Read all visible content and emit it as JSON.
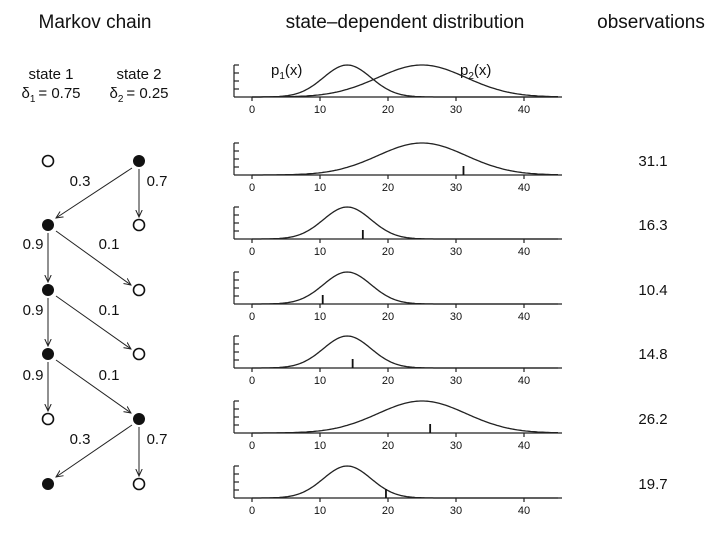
{
  "headers": {
    "markov": "Markov chain",
    "distribution": "state–dependent distribution",
    "observations": "observations"
  },
  "states": [
    {
      "label": "state 1",
      "delta_symbol": "δ",
      "delta_sub": "1",
      "delta_value": "= 0.75"
    },
    {
      "label": "state 2",
      "delta_symbol": "δ",
      "delta_sub": "2",
      "delta_value": "= 0.25"
    }
  ],
  "top_plot_labels": [
    {
      "p": "p",
      "sub": "1",
      "x": "(x)"
    },
    {
      "p": "p",
      "sub": "2",
      "x": "(x)"
    }
  ],
  "distributions": {
    "p1": {
      "mean": 14,
      "sd": 3.5
    },
    "p2": {
      "mean": 25,
      "sd": 6.5
    },
    "xlim": [
      0,
      45
    ],
    "xticks": [
      0,
      10,
      20,
      30,
      40
    ]
  },
  "chain": [
    {
      "state": 2,
      "observation": "31.1",
      "obs_value": 31.1
    },
    {
      "state": 1,
      "observation": "16.3",
      "obs_value": 16.3
    },
    {
      "state": 1,
      "observation": "10.4",
      "obs_value": 10.4
    },
    {
      "state": 1,
      "observation": "14.8",
      "obs_value": 14.8
    },
    {
      "state": 2,
      "observation": "26.2",
      "obs_value": 26.2
    },
    {
      "state": 1,
      "observation": "19.7",
      "obs_value": 19.7
    }
  ],
  "transitions": [
    "0.3",
    "0.7",
    "0.9",
    "0.1",
    "0.9",
    "0.1",
    "0.9",
    "0.1",
    "0.3",
    "0.7"
  ]
}
